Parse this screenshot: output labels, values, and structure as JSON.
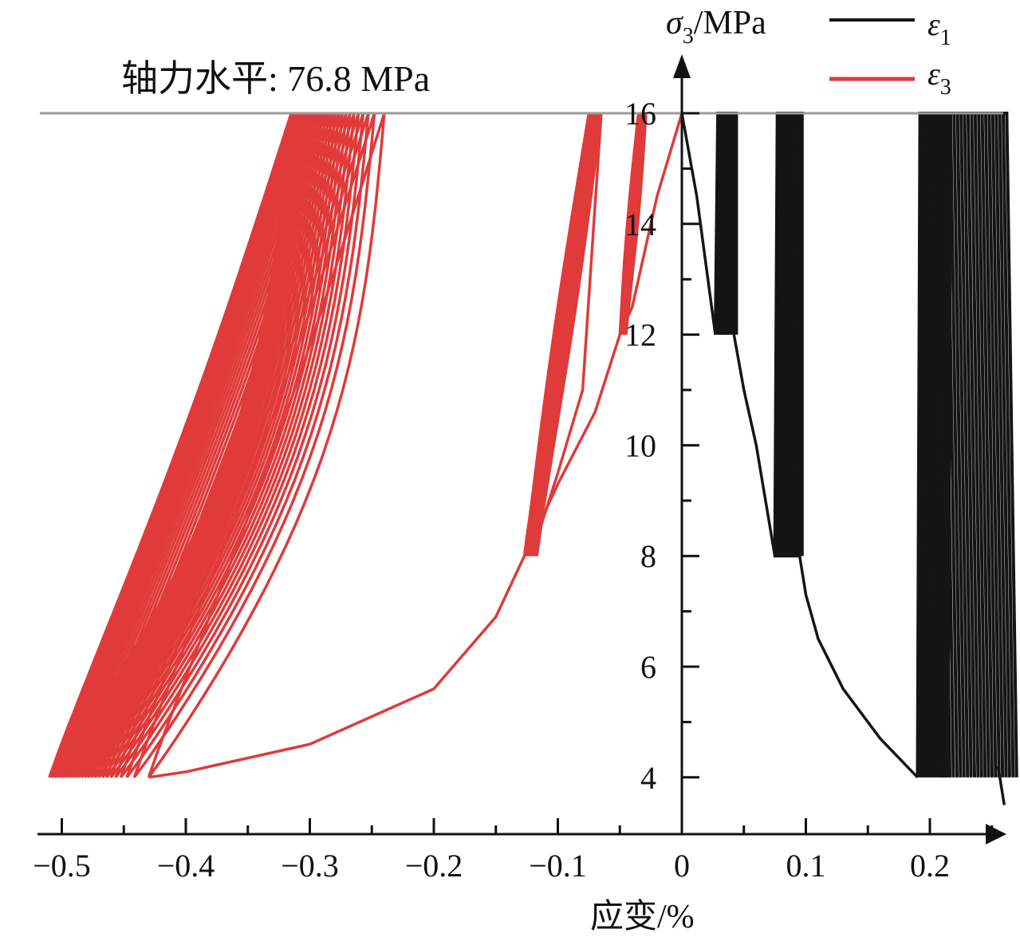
{
  "chart_data": {
    "type": "line",
    "title": "",
    "annotation": "轴力水平: 76.8 MPa",
    "xlabel": "应变/%",
    "ylabel": "σ3/MPa",
    "ylabel_symbol": "σ",
    "ylabel_sub": "3",
    "ylabel_unit": "/MPa",
    "xlim": [
      -0.52,
      0.26
    ],
    "ylim": [
      3.0,
      17.0
    ],
    "x_ticks": [
      -0.5,
      -0.4,
      -0.3,
      -0.2,
      -0.1,
      0,
      0.1,
      0.2
    ],
    "x_tick_labels": [
      "−0.5",
      "−0.4",
      "−0.3",
      "−0.2",
      "−0.1",
      "0",
      "0.1",
      "0.2"
    ],
    "y_ticks": [
      4,
      6,
      8,
      10,
      12,
      14,
      16
    ],
    "y_tick_labels": [
      "4",
      "6",
      "8",
      "10",
      "12",
      "14",
      "16"
    ],
    "reference_line": {
      "y": 16,
      "color": "#9a9a9a"
    },
    "grid": false,
    "legend_position": "top-right",
    "series": [
      {
        "name": "ε1",
        "symbol": "ε",
        "sub": "1",
        "color": "#151515",
        "envelope": [
          [
            0.0,
            16
          ],
          [
            0.012,
            14.5
          ],
          [
            0.027,
            12
          ]
        ],
        "stages": [
          {
            "lower": 12,
            "upper": 16,
            "x_start": 0.027,
            "x_end": 0.042,
            "cycles": 14
          },
          {
            "lower": 8,
            "upper": 16,
            "x_start": 0.075,
            "x_end": 0.095,
            "cycles": 14
          },
          {
            "lower": 4,
            "upper": 16,
            "x_start": 0.19,
            "x_end": 0.26,
            "cycles": 22
          }
        ],
        "backbone": [
          [
            0.042,
            12
          ],
          [
            0.05,
            11
          ],
          [
            0.06,
            10
          ],
          [
            0.075,
            8
          ],
          [
            0.095,
            8
          ],
          [
            0.1,
            7.3
          ],
          [
            0.11,
            6.5
          ],
          [
            0.13,
            5.6
          ],
          [
            0.16,
            4.7
          ],
          [
            0.19,
            4.0
          ]
        ]
      },
      {
        "name": "ε3",
        "symbol": "ε",
        "sub": "3",
        "color": "#e03a3a",
        "backbone": [
          [
            0.0,
            16
          ],
          [
            -0.02,
            14.5
          ],
          [
            -0.04,
            12.5
          ],
          [
            -0.05,
            12
          ],
          [
            -0.07,
            10.6
          ],
          [
            -0.1,
            9.3
          ],
          [
            -0.127,
            8
          ],
          [
            -0.15,
            6.9
          ],
          [
            -0.2,
            5.6
          ],
          [
            -0.3,
            4.6
          ],
          [
            -0.4,
            4.1
          ],
          [
            -0.43,
            4.0
          ]
        ],
        "stages": [
          {
            "lower": 12,
            "upper": 16,
            "x_start": -0.05,
            "x_end": -0.03,
            "cycles": 8
          },
          {
            "lower": 8,
            "upper": 16,
            "x_start": -0.127,
            "x_end": -0.065,
            "cycles": 14
          },
          {
            "lower": 4,
            "upper": 16,
            "x_start": -0.43,
            "x_end": -0.51,
            "cycles": 26
          }
        ]
      }
    ]
  }
}
